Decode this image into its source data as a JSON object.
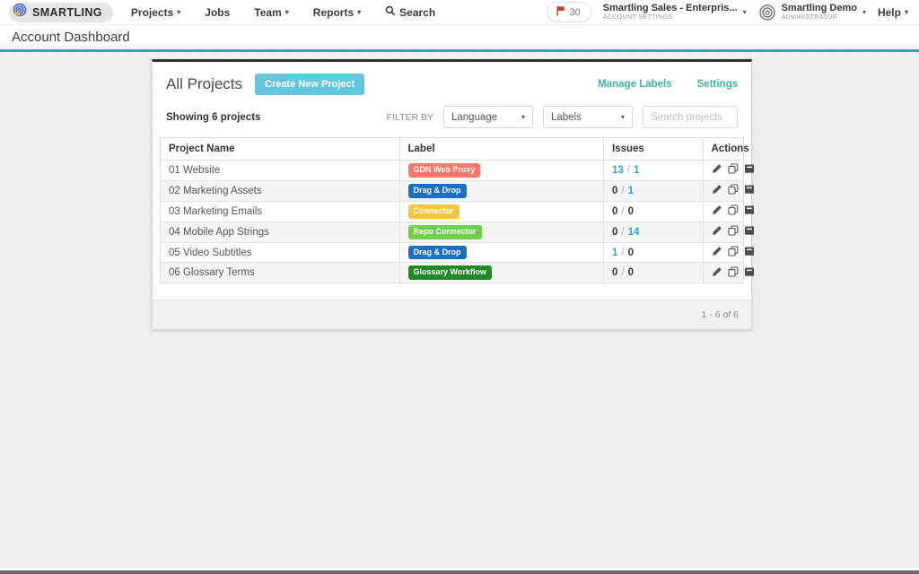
{
  "navbar": {
    "brand": "SMARTLING",
    "items": {
      "projects": "Projects",
      "jobs": "Jobs",
      "team": "Team",
      "reports": "Reports",
      "search": "Search"
    },
    "issue_count": "30",
    "account_menu": {
      "name": "Smartling Sales - Enterpris...",
      "role": "ACCOUNT SETTINGS"
    },
    "user_menu": {
      "name": "Smartling Demo",
      "role": "ADMINISTRATOR"
    },
    "help": "Help"
  },
  "page": {
    "title": "Account Dashboard"
  },
  "panel": {
    "title": "All Projects",
    "create_button": "Create New Project",
    "manage_labels_link": "Manage Labels",
    "settings_link": "Settings",
    "showing_text": "Showing 6 projects",
    "filter": {
      "label": "FILTER BY",
      "language_value": "Language",
      "labels_value": "Labels",
      "search_placeholder": "Search projects"
    },
    "table": {
      "headers": [
        "Project Name",
        "Label",
        "Issues",
        "Actions"
      ],
      "rows": [
        {
          "name": "01 Website",
          "label": "GDN Web Proxy",
          "label_color": "#f4796a",
          "issues": {
            "open": "13",
            "resolved": "1"
          }
        },
        {
          "name": "02 Marketing Assets",
          "label": "Drag & Drop",
          "label_color": "#1b6ec2",
          "issues": {
            "open": "0",
            "resolved": "1"
          }
        },
        {
          "name": "03 Marketing Emails",
          "label": "Connector",
          "label_color": "#f7c53f",
          "issues": {
            "open": "0",
            "resolved": "0"
          }
        },
        {
          "name": "04 Mobile App Strings",
          "label": "Repo Connector",
          "label_color": "#70cf4e",
          "issues": {
            "open": "0",
            "resolved": "14"
          }
        },
        {
          "name": "05 Video Subtitles",
          "label": "Drag & Drop",
          "label_color": "#1b6ec2",
          "issues": {
            "open": "1",
            "resolved": "0"
          }
        },
        {
          "name": "06 Glossary Terms",
          "label": "Glossary Workflow",
          "label_color": "#1d8a26",
          "issues": {
            "open": "0",
            "resolved": "0"
          }
        }
      ]
    },
    "pagination": "1 - 6 of 6"
  },
  "colors": {
    "accent_teal": "#2fa7c0",
    "link_teal": "#3fb3a0",
    "issues_link_teal": "#2aa4c4",
    "create_button_bg": "#64c6dd",
    "flag_red": "#c0392b",
    "panel_top_border": "#2d2d2d"
  }
}
